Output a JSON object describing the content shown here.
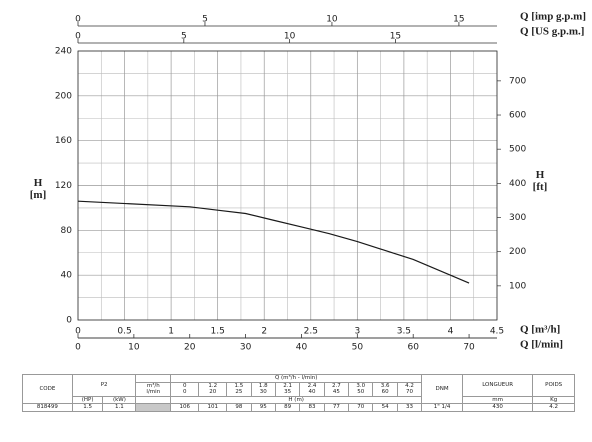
{
  "chart_data": {
    "type": "line",
    "x_label": "Q [m³/h]",
    "xlim": [
      0,
      4.5
    ],
    "xticks": [
      0,
      0.5,
      1,
      1.5,
      2,
      2.5,
      3,
      3.5,
      4,
      4.5
    ],
    "y_label": "H [m]",
    "ylim": [
      0,
      240
    ],
    "yticks": [
      0,
      40,
      80,
      120,
      160,
      200,
      240
    ],
    "y2_label": "H [ft]",
    "y2lim": [
      0,
      787.4
    ],
    "y2ticks": [
      100,
      200,
      300,
      400,
      500,
      600,
      700
    ],
    "extra_x_axes": [
      {
        "label": "Q [imp g.p.m]",
        "position": "top",
        "xlim": [
          0,
          16.5
        ],
        "xticks": [
          0,
          5,
          10,
          15
        ]
      },
      {
        "label": "Q [US g.p.m.]",
        "position": "top",
        "xlim": [
          0,
          19.8
        ],
        "xticks": [
          0,
          5,
          10,
          15
        ]
      },
      {
        "label": "Q [l/min]",
        "position": "bottom",
        "xlim": [
          0,
          75
        ],
        "xticks": [
          0,
          10,
          20,
          30,
          40,
          50,
          60,
          70
        ]
      }
    ],
    "grid": true,
    "x": [
      0,
      1.2,
      1.5,
      1.8,
      2.1,
      2.4,
      2.7,
      3.0,
      3.6,
      4.2
    ],
    "series": [
      {
        "name": "818499",
        "color": "#1a1a1a",
        "values": [
          106,
          101,
          98,
          95,
          89,
          83,
          77,
          70,
          54,
          33
        ]
      }
    ]
  },
  "table": {
    "code_header": "CODE",
    "p2_header": "P2",
    "q_header": "Q (m³/h - l/min)",
    "q_units": [
      "m³/h",
      "l/min"
    ],
    "q_m3h": [
      "0",
      "1.2",
      "1.5",
      "1.8",
      "2.1",
      "2.4",
      "2.7",
      "3.0",
      "3.6",
      "4.2"
    ],
    "q_lmin": [
      "0",
      "20",
      "25",
      "30",
      "35",
      "40",
      "45",
      "50",
      "60",
      "70"
    ],
    "p2_units": [
      "(HP)",
      "(kW)"
    ],
    "h_header": "H (m)",
    "dnm_header": "DNM",
    "longueur_header": "LONGUEUR",
    "poids_header": "POIDS",
    "longueur_unit": "mm",
    "poids_unit": "Kg",
    "rows": [
      {
        "code": "818499",
        "hp": "1.5",
        "kw": "1.1",
        "h": [
          106,
          101,
          98,
          95,
          89,
          83,
          77,
          70,
          54,
          33
        ],
        "dnm": "1\" 1/4",
        "longueur": "430",
        "poids": "4.2"
      }
    ]
  }
}
